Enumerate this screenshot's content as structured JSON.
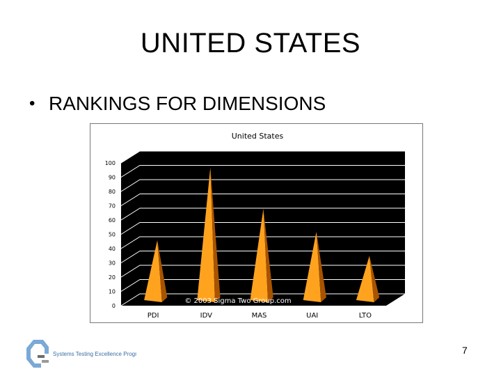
{
  "slide": {
    "title": "UNITED STATES",
    "bullet": "RANKINGS FOR DIMENSIONS",
    "page_number": "7",
    "logo_text": "Systems Testing Excellence Program"
  },
  "chart_data": {
    "type": "bar",
    "style": "3d-cone",
    "title": "United States",
    "categories": [
      "PDI",
      "IDV",
      "MAS",
      "UAI",
      "LTO"
    ],
    "values": [
      40,
      91,
      62,
      46,
      29
    ],
    "ylim": [
      0,
      100
    ],
    "yticks": [
      0,
      10,
      20,
      30,
      40,
      50,
      60,
      70,
      80,
      90,
      100
    ],
    "xlabel": "",
    "ylabel": "",
    "grid": true,
    "watermark": "© 2003 Sigma Two Group.com",
    "colors": {
      "plot_background": "#000000",
      "gridline": "#ffffff",
      "cone_light": "#ffa31f",
      "cone_dark": "#a85300",
      "frame_border": "#777777"
    }
  }
}
